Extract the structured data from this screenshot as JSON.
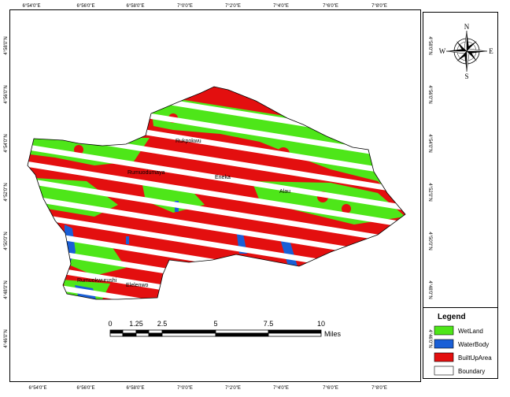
{
  "map": {
    "longitude_labels_top": [
      "6°54'0\"E",
      "6°56'0\"E",
      "6°58'0\"E",
      "7°0'0\"E",
      "7°2'0\"E",
      "7°4'0\"E",
      "7°6'0\"E",
      "7°8'0\"E"
    ],
    "longitude_labels_bottom": [
      "6°54'0\"E",
      "6°56'0\"E",
      "6°58'0\"E",
      "7°0'0\"E",
      "7°2'0\"E",
      "7°4'0\"E",
      "7°6'0\"E",
      "7°8'0\"E"
    ],
    "latitude_labels_left": [
      "4°58'0\"N",
      "4°56'0\"N",
      "4°54'0\"N",
      "4°52'0\"N",
      "4°50'0\"N",
      "4°48'0\"N",
      "4°46'0\"N"
    ],
    "latitude_labels_right": [
      "4°58'0\"N",
      "4°56'0\"N",
      "4°54'0\"N",
      "4°52'0\"N",
      "4°50'0\"N",
      "4°48'0\"N",
      "4°46'0\"N"
    ],
    "towns": [
      {
        "name": "Rukpokwu"
      },
      {
        "name": "Rumuodumaya"
      },
      {
        "name": "Eneka"
      },
      {
        "name": "Alau"
      },
      {
        "name": "Rumuokwurushi"
      },
      {
        "name": "Elelenwo"
      }
    ],
    "stripe_count": 15
  },
  "compass": {
    "n": "N",
    "s": "S",
    "e": "E",
    "w": "W"
  },
  "scale_bar": {
    "labels": [
      "0",
      "1.25",
      "2.5",
      "5",
      "7.5",
      "10"
    ],
    "unit": "Miles"
  },
  "legend": {
    "title": "Legend",
    "items": [
      {
        "label": "WetLand",
        "color": "#4ee619"
      },
      {
        "label": "WaterBody",
        "color": "#1a5fd6"
      },
      {
        "label": "BuiltUpArea",
        "color": "#e30f0f"
      },
      {
        "label": "Boundary",
        "color": "#ffffff"
      }
    ]
  }
}
